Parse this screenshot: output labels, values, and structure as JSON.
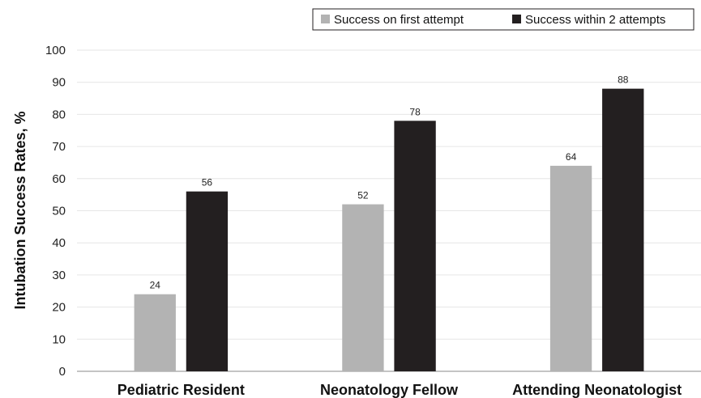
{
  "chart_data": {
    "type": "bar",
    "categories": [
      "Pediatric Resident",
      "Neonatology Fellow",
      "Attending Neonatologist"
    ],
    "series": [
      {
        "name": "Success on first attempt",
        "values": [
          24,
          52,
          64
        ],
        "color": "#b3b3b3"
      },
      {
        "name": "Success within 2 attempts",
        "values": [
          56,
          78,
          88
        ],
        "color": "#231f20"
      }
    ],
    "xlabel": "",
    "ylabel": "Intubation Success Rates, %",
    "ylim": [
      0,
      100
    ],
    "yticks": [
      0,
      10,
      20,
      30,
      40,
      50,
      60,
      70,
      80,
      90,
      100
    ],
    "grid": true,
    "legend_position": "top-right",
    "data_labels": true
  }
}
